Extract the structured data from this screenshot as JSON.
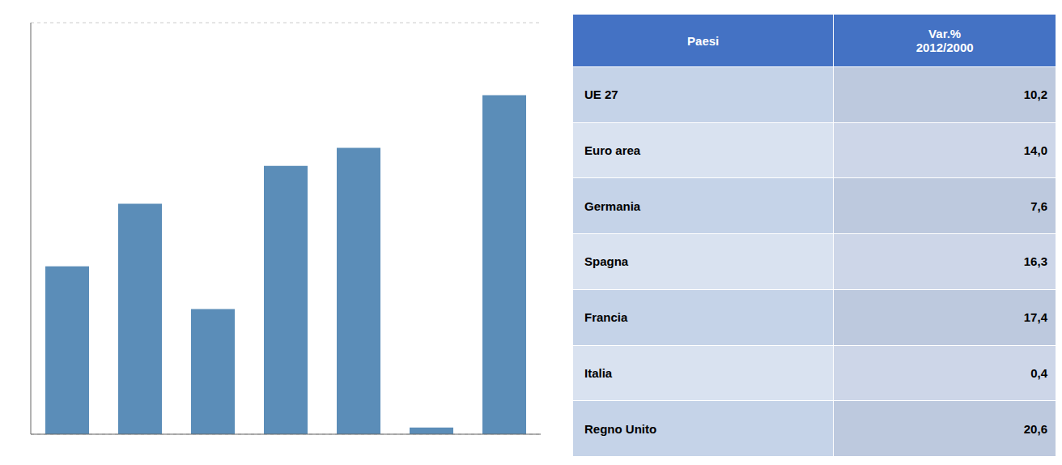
{
  "chart_data": {
    "type": "bar",
    "categories": [
      "UE 27",
      "Euro area",
      "Germania",
      "Spagna",
      "Francia",
      "Italia",
      "Regno Unito"
    ],
    "values": [
      10.2,
      14.0,
      7.6,
      16.3,
      17.4,
      0.4,
      20.6
    ],
    "value_labels": [
      "10,2",
      "14,0",
      "7,6",
      "16,3",
      "17,4",
      "0,4",
      "20,6"
    ],
    "color": "#5B8DB8",
    "ylim": [
      0,
      25
    ],
    "yticks": [
      0,
      2.5,
      5,
      7.5,
      10,
      12.5,
      15,
      17.5,
      20,
      22.5,
      25
    ],
    "grid": true,
    "tick_labels": false,
    "annotations": [
      "Paesi",
      "Var.%\n2012/2000"
    ]
  }
}
